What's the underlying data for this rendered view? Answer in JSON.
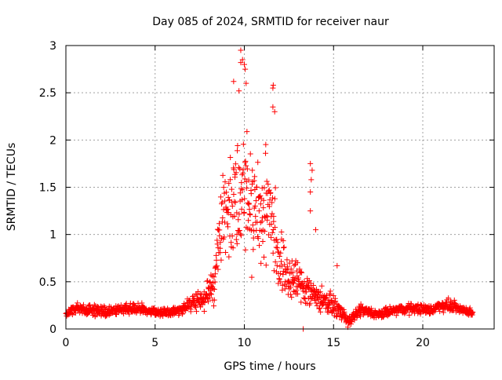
{
  "chart_data": {
    "type": "scatter",
    "title": "Day 085 of 2024, SRMTID for receiver naur",
    "xlabel": "GPS time / hours",
    "ylabel": "SRMTID / TECUs",
    "xlim": [
      0,
      24
    ],
    "ylim": [
      0,
      3
    ],
    "x_ticks": [
      0,
      5,
      10,
      15,
      20
    ],
    "x_tick_labels": [
      "0",
      "5",
      "10",
      "15",
      "20"
    ],
    "y_ticks": [
      0,
      0.5,
      1,
      1.5,
      2,
      2.5,
      3
    ],
    "y_tick_labels": [
      "0",
      "0.5",
      "1",
      "1.5",
      "2",
      "2.5",
      "3"
    ],
    "grid": true,
    "marker": "plus",
    "series_color": "#ff0000",
    "series": [
      {
        "name": "SRMTID",
        "profile": [
          {
            "t": 0.0,
            "base": 0.15,
            "spread": 0.05
          },
          {
            "t": 0.5,
            "base": 0.22,
            "spread": 0.07
          },
          {
            "t": 1.5,
            "base": 0.2,
            "spread": 0.07
          },
          {
            "t": 2.5,
            "base": 0.18,
            "spread": 0.07
          },
          {
            "t": 3.5,
            "base": 0.22,
            "spread": 0.07
          },
          {
            "t": 4.5,
            "base": 0.2,
            "spread": 0.07
          },
          {
            "t": 5.5,
            "base": 0.17,
            "spread": 0.06
          },
          {
            "t": 6.5,
            "base": 0.2,
            "spread": 0.07
          },
          {
            "t": 7.0,
            "base": 0.28,
            "spread": 0.12
          },
          {
            "t": 7.8,
            "base": 0.32,
            "spread": 0.15
          },
          {
            "t": 8.3,
            "base": 0.5,
            "spread": 0.3
          },
          {
            "t": 8.6,
            "base": 1.0,
            "spread": 0.45
          },
          {
            "t": 9.0,
            "base": 1.3,
            "spread": 0.7
          },
          {
            "t": 9.5,
            "base": 1.4,
            "spread": 0.8
          },
          {
            "t": 10.0,
            "base": 1.5,
            "spread": 0.9
          },
          {
            "t": 10.5,
            "base": 1.3,
            "spread": 0.8
          },
          {
            "t": 11.0,
            "base": 1.2,
            "spread": 0.7
          },
          {
            "t": 11.5,
            "base": 1.3,
            "spread": 0.8
          },
          {
            "t": 12.0,
            "base": 0.7,
            "spread": 0.5
          },
          {
            "t": 12.5,
            "base": 0.55,
            "spread": 0.35
          },
          {
            "t": 13.0,
            "base": 0.5,
            "spread": 0.3
          },
          {
            "t": 14.0,
            "base": 0.35,
            "spread": 0.2
          },
          {
            "t": 15.0,
            "base": 0.25,
            "spread": 0.12
          },
          {
            "t": 15.9,
            "base": 0.08,
            "spread": 0.06
          },
          {
            "t": 16.5,
            "base": 0.2,
            "spread": 0.08
          },
          {
            "t": 17.5,
            "base": 0.15,
            "spread": 0.06
          },
          {
            "t": 18.5,
            "base": 0.2,
            "spread": 0.07
          },
          {
            "t": 19.5,
            "base": 0.22,
            "spread": 0.07
          },
          {
            "t": 20.5,
            "base": 0.2,
            "spread": 0.07
          },
          {
            "t": 21.0,
            "base": 0.25,
            "spread": 0.08
          },
          {
            "t": 21.5,
            "base": 0.25,
            "spread": 0.08
          },
          {
            "t": 22.8,
            "base": 0.17,
            "spread": 0.05
          }
        ],
        "x_range_hours": [
          0,
          22.8
        ],
        "sample_count": 1400,
        "notable_points": [
          {
            "x": 9.8,
            "y": 2.95
          },
          {
            "x": 9.9,
            "y": 2.85
          },
          {
            "x": 10.0,
            "y": 2.8
          },
          {
            "x": 9.8,
            "y": 2.82
          },
          {
            "x": 10.05,
            "y": 2.75
          },
          {
            "x": 9.4,
            "y": 2.62
          },
          {
            "x": 10.1,
            "y": 2.6
          },
          {
            "x": 9.7,
            "y": 2.52
          },
          {
            "x": 11.6,
            "y": 2.55
          },
          {
            "x": 11.62,
            "y": 2.58
          },
          {
            "x": 11.6,
            "y": 2.35
          },
          {
            "x": 11.7,
            "y": 2.3
          },
          {
            "x": 13.7,
            "y": 1.75
          },
          {
            "x": 13.8,
            "y": 1.68
          },
          {
            "x": 13.75,
            "y": 1.58
          },
          {
            "x": 13.7,
            "y": 1.45
          },
          {
            "x": 13.7,
            "y": 1.25
          },
          {
            "x": 14.0,
            "y": 1.05
          },
          {
            "x": 15.2,
            "y": 0.67
          },
          {
            "x": 15.8,
            "y": 0.02
          },
          {
            "x": 13.3,
            "y": 0.0
          }
        ]
      }
    ]
  }
}
